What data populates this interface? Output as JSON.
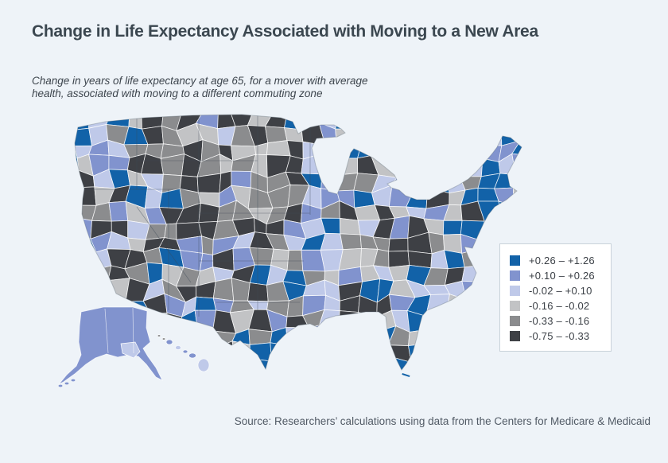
{
  "page": {
    "background": "#eef3f8"
  },
  "header": {
    "title": "Change in Life Expectancy Associated with Moving to a New Area",
    "subtitle": "Change in years of life expectancy at age 65, for a mover with average\nhealth, associated with moving to a different commuting zone"
  },
  "chart_data": {
    "type": "choropleth",
    "title": "Change in Life Expectancy Associated with Moving to a New Area",
    "subtitle": "Change in years of life expectancy at age 65, for a mover with average health, associated with moving to a different commuting zone",
    "geography": "United States commuting zones, including Alaska and Hawaii",
    "measure": "Change in years of life expectancy at age 65 for a mover with average health",
    "legend_position": "right",
    "bins": [
      {
        "label": "+0.26  –  +1.26",
        "min": 0.26,
        "max": 1.26,
        "color": "#1262a8"
      },
      {
        "label": "+0.10  –  +0.26",
        "min": 0.1,
        "max": 0.26,
        "color": "#8193ce"
      },
      {
        "label": "-0.02  –  +0.10",
        "min": -0.02,
        "max": 0.1,
        "color": "#bfc9e9"
      },
      {
        "label": "-0.16  –  -0.02",
        "min": -0.16,
        "max": -0.02,
        "color": "#c2c3c5"
      },
      {
        "label": "-0.33  –  -0.16",
        "min": -0.33,
        "max": -0.16,
        "color": "#8b8c8e"
      },
      {
        "label": "-0.75  –  -0.33",
        "min": -0.75,
        "max": -0.33,
        "color": "#3e4045"
      }
    ],
    "zone_border_color": "#ffffff",
    "state_border_color": "#3d4a57",
    "ocean_color": "#eef3f8"
  },
  "footer": {
    "source": "Source: Researchers’ calculations using data from the Centers for Medicare & Medicaid"
  }
}
